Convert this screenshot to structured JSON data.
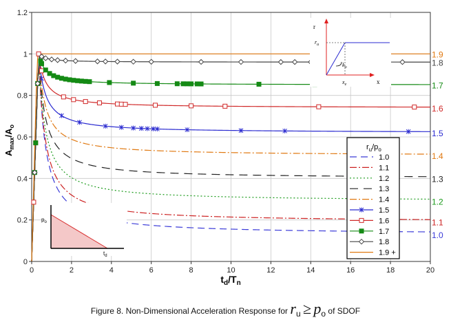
{
  "chart_data": {
    "type": "line",
    "ylabel_main": "A",
    "ylabel_sub1": "max",
    "ylabel_mid": "/A",
    "ylabel_sub2": "o",
    "xlabel_main": "t",
    "xlabel_sub1": "d",
    "xlabel_mid": "/T",
    "xlabel_sub2": "n",
    "xlim": [
      0,
      20
    ],
    "ylim": [
      0,
      1.2
    ],
    "x_ticks": [
      0,
      2,
      4,
      6,
      8,
      10,
      12,
      14,
      16,
      18,
      20
    ],
    "y_ticks": [
      0,
      0.2,
      0.4,
      0.6,
      0.8,
      1,
      1.2
    ],
    "y_tick_labels": [
      "0",
      "0.2",
      "0.4",
      "0.6",
      "0.8",
      "1",
      "1.2"
    ],
    "grid": true,
    "legend_title": "r",
    "legend_title_sub": "u",
    "legend_title_rest": "/p",
    "legend_title_sub2": "o",
    "legend_position": "lower-right",
    "series": [
      {
        "name": "1.0",
        "color": "#3a3ad8",
        "dash": "10,6",
        "marker": "none",
        "end_label": "1.0",
        "end_value": 0.13
      },
      {
        "name": "1.1",
        "color": "#cc2020",
        "dash": "10,3,2,3",
        "marker": "none",
        "end_label": "1.1",
        "end_value": 0.19
      },
      {
        "name": "1.2",
        "color": "#1a9a1a",
        "dash": "2,3",
        "marker": "none",
        "end_label": "1.2",
        "end_value": 0.29
      },
      {
        "name": "1.3",
        "color": "#222222",
        "dash": "12,8",
        "marker": "none",
        "end_label": "1.3",
        "end_value": 0.4
      },
      {
        "name": "1.4",
        "color": "#e07810",
        "dash": "10,3,2,3",
        "marker": "none",
        "end_label": "1.4",
        "end_value": 0.51
      },
      {
        "name": "1.5",
        "color": "#2a2ad0",
        "dash": "",
        "marker": "x",
        "end_label": "1.5",
        "end_value": 0.62
      },
      {
        "name": "1.6",
        "color": "#d02828",
        "dash": "",
        "marker": "square-open",
        "end_label": "1.6",
        "end_value": 0.74
      },
      {
        "name": "1.7",
        "color": "#148a14",
        "dash": "",
        "marker": "square",
        "end_label": "1.7",
        "end_value": 0.85
      },
      {
        "name": "1.8",
        "color": "#444444",
        "dash": "",
        "marker": "diamond-open",
        "end_label": "1.8",
        "end_value": 0.96
      },
      {
        "name": "1.9 +",
        "color": "#e07810",
        "dash": "",
        "marker": "none",
        "end_label": "1.9 +",
        "end_value": 1.0
      }
    ],
    "inset_left": {
      "y_label": "p",
      "y_label_sub": "o",
      "x_label": "t",
      "x_label_sub": "d"
    },
    "inset_right": {
      "y_label": "r",
      "y_label_2": "r",
      "y_label_2_sub": "u",
      "x_label": "x",
      "x_label_2": "x",
      "x_label_2_sub": "e",
      "slope_label": "k",
      "slope_label_sub": "o"
    }
  },
  "caption": {
    "prefix": "Figure 8. Non-Dimensional Acceleration Response for",
    "math_r": "r",
    "math_r_sub": "u",
    "math_ge": "≥",
    "math_p": "p",
    "math_p_sub": "o",
    "suffix": "of SDOF"
  }
}
